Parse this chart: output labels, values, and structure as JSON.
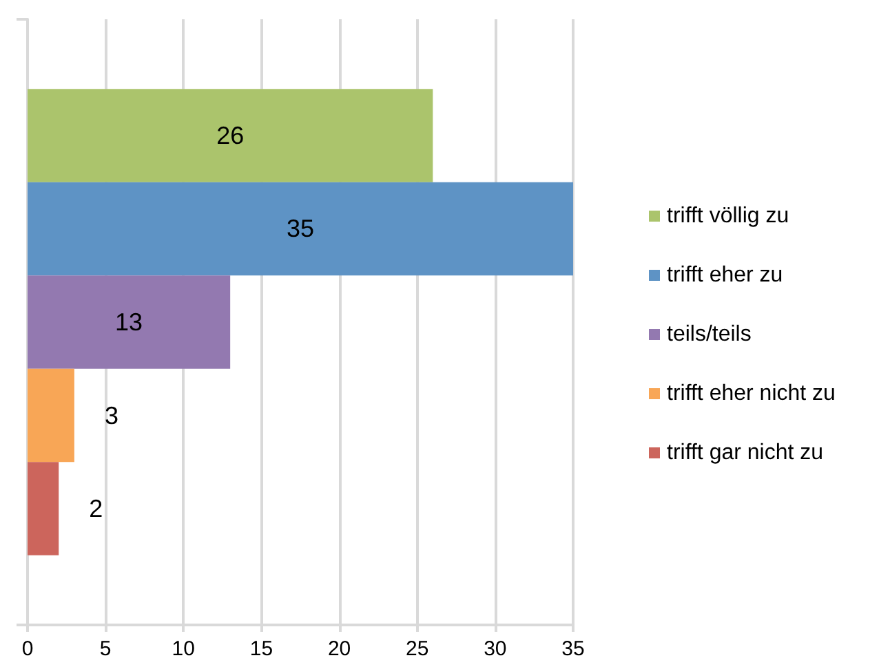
{
  "chart_data": {
    "type": "bar",
    "orientation": "horizontal",
    "categories": [
      null
    ],
    "series": [
      {
        "name": "trifft völlig zu",
        "color": "#abc46c",
        "values": [
          26
        ]
      },
      {
        "name": "trifft eher zu",
        "color": "#5e93c5",
        "values": [
          35
        ]
      },
      {
        "name": "teils/teils",
        "color": "#9379b0",
        "values": [
          13
        ]
      },
      {
        "name": "trifft eher nicht zu",
        "color": "#f8a656",
        "values": [
          3
        ]
      },
      {
        "name": "trifft gar nicht zu",
        "color": "#cc655c",
        "values": [
          2
        ]
      }
    ],
    "xlim": [
      0,
      35
    ],
    "xticks": [
      0,
      5,
      10,
      15,
      20,
      25,
      30,
      35
    ],
    "grid": "x",
    "legend": "right",
    "data_labels": true
  }
}
